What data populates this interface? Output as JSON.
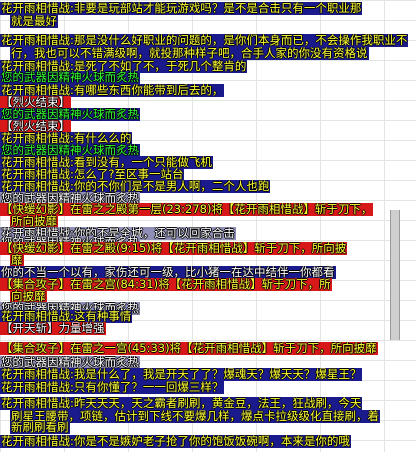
{
  "chat": {
    "l0": "花开雨相惜战:非要是玩部站才能玩游戏吗？是不是合击只有一个职业那",
    "l1": "就是最好",
    "l2": "花开雨相惜战:那是没什么好职业的问题的，是你们本身而已，不会操作我职业不",
    "l3": "行，我也可以不错满级啊，就投那种样子吧，合手人家的你没有资格说",
    "l4": "花开雨相惜战:是死了不如了不，于死几个整肯的",
    "l5": "您的武器因精神火球而炙热",
    "l6": "花开雨相惜战:有哪些东西你能带到后去的，",
    "l7": "【烈火结束】",
    "l8": "您的武器因精神火球而炙热",
    "l9": "【烈火结束】",
    "l10": "花开雨相惜战:有什么么的",
    "l11": "您的武器因精神火球而炙热",
    "l12": "花开雨相惜战:看到没有，一个只能做飞机",
    "l13": "花开雨相惜战:怎么了?至区事一站台",
    "l14": "花开雨相惜战:你的不你们是不是男人啊，二个人也跑",
    "l15": "您的武器因精神火球而炙热",
    "l16": "【快缓幻影】在雷之之殿第一层(23:278)将【花开雨相惜战】斩于刀下，",
    "l17": "所向披靡",
    "l18": "花开雨相惜战:你的不是全城，还可以回家合击",
    "l19": "您的武器因精神火球而炙热",
    "l20": "【快缓幻影】在雷之殿(9:15)将【花开雨相惜战】斩于刀下，所向披",
    "l21": "靡",
    "l22": "你的不当一个以有，家伤还可一级，比小猪一在达中结伴一你都看",
    "l23": "【集合攻子】在雷之宫(84:31)将【花开雨相惜战】斩于刀下，所",
    "l24": "向披靡",
    "l25": "您的武器因精神火球而炙热",
    "l26": "花开雨相惜战:这有种事情",
    "l27": "【开天斩】力量增强",
    "l28": "【集合攻子】在雷之一宫(45:33)将【花开雨相惜战】斩于刀下，所向披靡",
    "l29": "您的武器因精神火球而炙热",
    "l30": "花开雨相惜战:我是什么了，我是开天了了？爆魂天？爆天天？爆星王？",
    "l31": "花开雨相惜战:只有你懂了？一一回爆三样？",
    "l32": "花开雨相惜战:昨天天天，天之霸者刷刷，黄金豆，法王，狂战刷，今天",
    "l33": "刷星王腰带，项链，估计到下线不要爆几样，爆点卡拉级级化直接刷，着",
    "l34": "新刷刷看刷",
    "l35": "花开雨相惜战:你是不是嫉妒老子抢了你的饱饭饭碗啊，本来是你的哦"
  }
}
